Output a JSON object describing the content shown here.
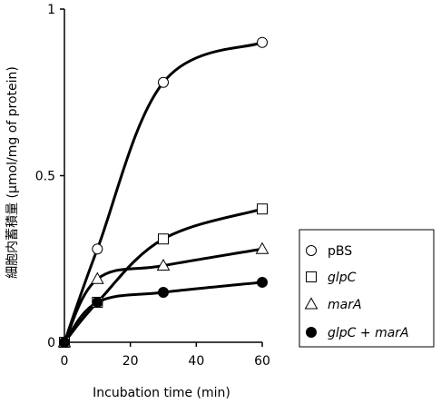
{
  "chart_data": {
    "type": "line",
    "title": "",
    "xlabel": "Incubation time (min)",
    "ylabel": "細胞内蓄積量 (μmol/mg of protein)",
    "xlim": [
      0,
      60
    ],
    "ylim": [
      0,
      1
    ],
    "x_ticks": [
      "0",
      "20",
      "40",
      "60"
    ],
    "y_ticks": [
      "0",
      "0.5",
      "1"
    ],
    "grid": false,
    "legend_position": "right",
    "x": [
      0,
      10,
      30,
      60
    ],
    "series": [
      {
        "name": "pBS",
        "marker": "open-circle",
        "italic": false,
        "values": [
          0,
          0.28,
          0.78,
          0.9
        ]
      },
      {
        "name": "glpC",
        "marker": "open-square",
        "italic": true,
        "values": [
          0,
          0.12,
          0.31,
          0.4
        ]
      },
      {
        "name": "marA",
        "marker": "open-triangle",
        "italic": true,
        "values": [
          0,
          0.19,
          0.23,
          0.28
        ]
      },
      {
        "name": "glpC + marA",
        "marker": "filled-circle",
        "italic": true,
        "values": [
          0,
          0.12,
          0.15,
          0.18
        ]
      }
    ]
  }
}
